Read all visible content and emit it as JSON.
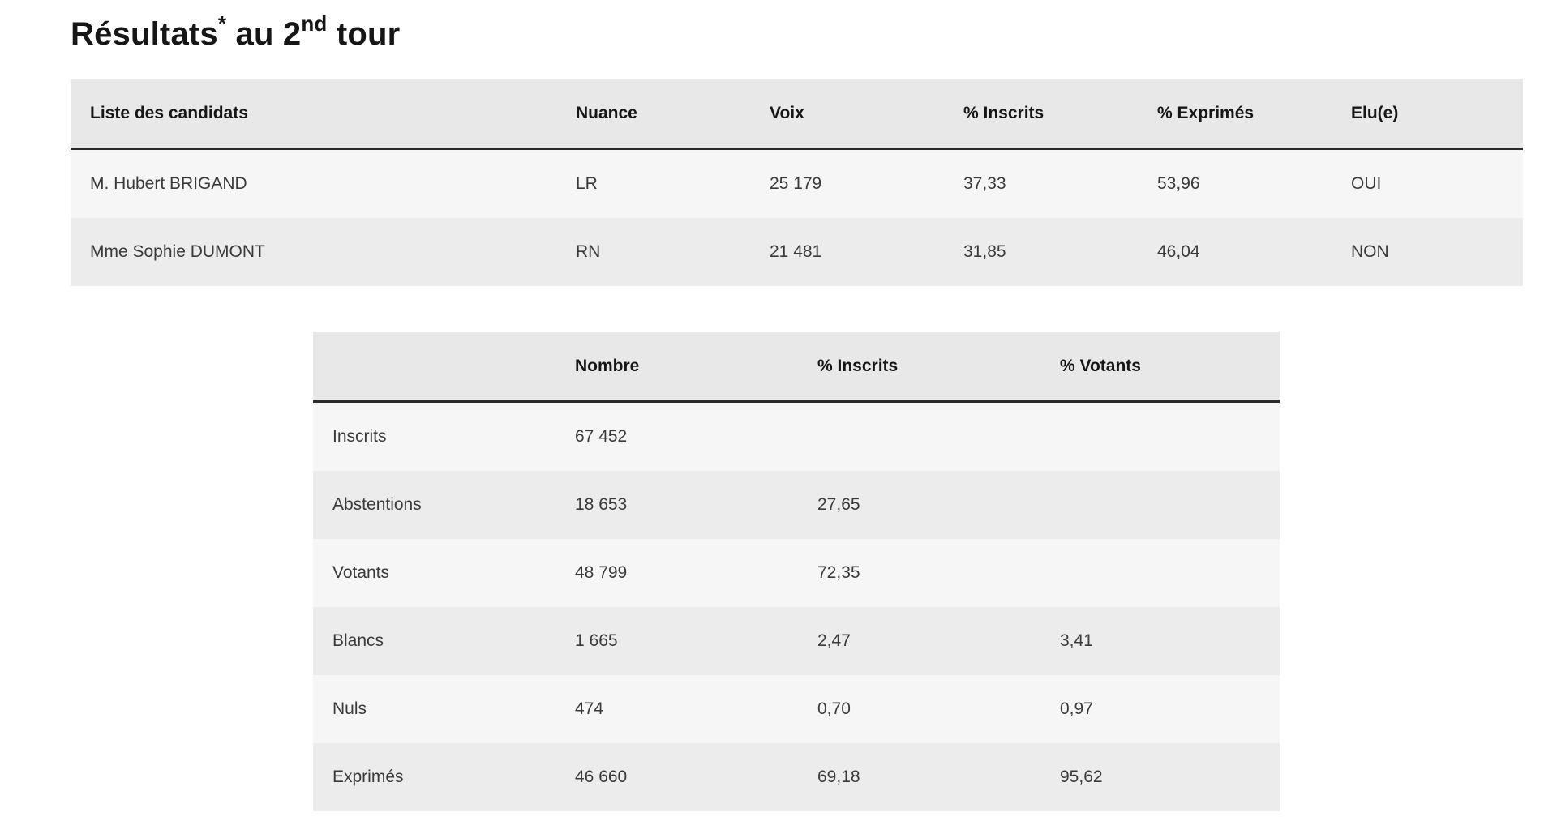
{
  "title": {
    "word": "Résultats",
    "asterisk": "*",
    "middle": " au 2",
    "ordinal": "nd",
    "end": " tour"
  },
  "candidates_table": {
    "headers": [
      "Liste des candidats",
      "Nuance",
      "Voix",
      "% Inscrits",
      "% Exprimés",
      "Elu(e)"
    ],
    "rows": [
      [
        "M. Hubert BRIGAND",
        "LR",
        "25 179",
        "37,33",
        "53,96",
        "OUI"
      ],
      [
        "Mme Sophie DUMONT",
        "RN",
        "21 481",
        "31,85",
        "46,04",
        "NON"
      ]
    ]
  },
  "stats_table": {
    "headers": [
      "",
      "Nombre",
      "% Inscrits",
      "% Votants"
    ],
    "rows": [
      [
        "Inscrits",
        "67 452",
        "",
        ""
      ],
      [
        "Abstentions",
        "18 653",
        "27,65",
        ""
      ],
      [
        "Votants",
        "48 799",
        "72,35",
        ""
      ],
      [
        "Blancs",
        "1 665",
        "2,47",
        "3,41"
      ],
      [
        "Nuls",
        "474",
        "0,70",
        "0,97"
      ],
      [
        "Exprimés",
        "46 660",
        "69,18",
        "95,62"
      ]
    ]
  }
}
